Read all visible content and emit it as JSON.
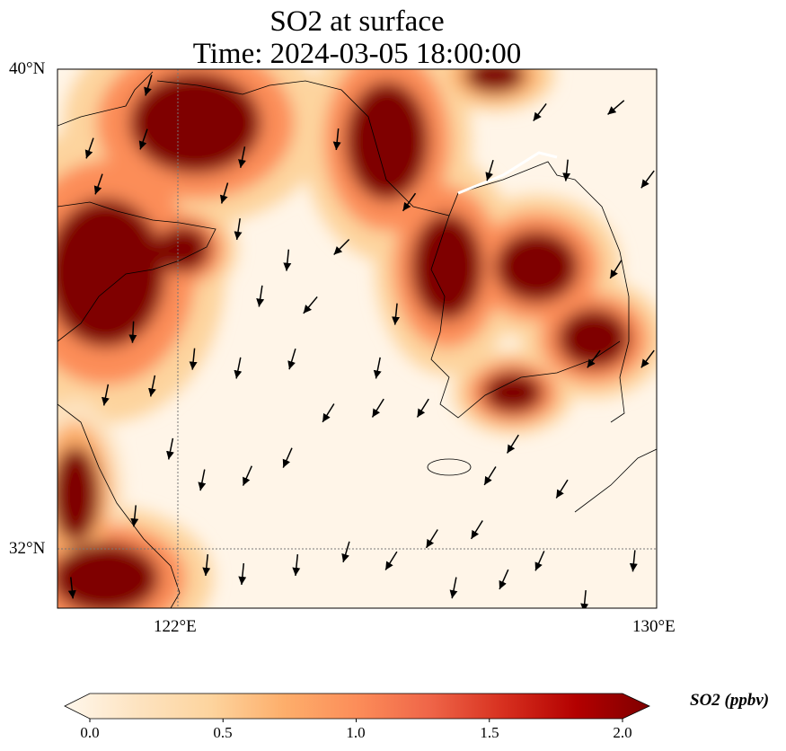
{
  "title": {
    "line1": "SO2 at surface",
    "line2": "Time: 2024-03-05 18:00:00"
  },
  "axes": {
    "lat_ticks": [
      {
        "value": 40,
        "label": "40°N"
      },
      {
        "value": 32,
        "label": "32°N"
      }
    ],
    "lon_ticks": [
      {
        "value": 122,
        "label": "122°E"
      },
      {
        "value": 130,
        "label": "130°E"
      }
    ]
  },
  "colorbar": {
    "label": "SO2 (ppbv)",
    "ticks": [
      {
        "value": 0.0,
        "label": "0.0"
      },
      {
        "value": 0.5,
        "label": "0.5"
      },
      {
        "value": 1.0,
        "label": "1.0"
      },
      {
        "value": 1.5,
        "label": "1.5"
      },
      {
        "value": 2.0,
        "label": "2.0"
      }
    ],
    "colors": [
      "#fff7ec",
      "#fde3c0",
      "#fdd49e",
      "#fdae6b",
      "#fc8d59",
      "#ef6548",
      "#d7301f",
      "#b30000",
      "#7f0000"
    ]
  },
  "chart_data": {
    "type": "heatmap",
    "title": "SO2 at surface / Time: 2024-03-05 18:00:00",
    "variable": "SO2",
    "units": "ppbv",
    "lon_range": [
      120,
      130
    ],
    "lat_range": [
      31,
      40
    ],
    "value_range": [
      0,
      2
    ],
    "gridlines": {
      "lon": [
        122
      ],
      "lat": [
        32
      ]
    },
    "hotspots": [
      {
        "lon": 122.3,
        "lat": 39.1,
        "rlon": 1.1,
        "rlat": 0.85,
        "value": 2.0
      },
      {
        "lon": 120.8,
        "lat": 36.6,
        "rlon": 1.0,
        "rlat": 1.25,
        "value": 2.0
      },
      {
        "lon": 122.1,
        "lat": 37.0,
        "rlon": 0.45,
        "rlat": 0.4,
        "value": 1.8
      },
      {
        "lon": 125.5,
        "lat": 38.8,
        "rlon": 0.7,
        "rlat": 1.0,
        "value": 2.0
      },
      {
        "lon": 127.3,
        "lat": 39.9,
        "rlon": 0.5,
        "rlat": 0.3,
        "value": 1.6
      },
      {
        "lon": 126.5,
        "lat": 36.7,
        "rlon": 0.6,
        "rlat": 0.9,
        "value": 2.0
      },
      {
        "lon": 128.0,
        "lat": 36.7,
        "rlon": 0.7,
        "rlat": 0.6,
        "value": 2.0
      },
      {
        "lon": 128.95,
        "lat": 35.5,
        "rlon": 0.6,
        "rlat": 0.5,
        "value": 2.0
      },
      {
        "lon": 127.6,
        "lat": 34.6,
        "rlon": 0.5,
        "rlat": 0.35,
        "value": 2.0
      },
      {
        "lon": 120.8,
        "lat": 31.5,
        "rlon": 0.9,
        "rlat": 0.6,
        "value": 2.0
      },
      {
        "lon": 120.3,
        "lat": 32.9,
        "rlon": 0.4,
        "rlat": 0.8,
        "value": 1.3
      }
    ],
    "wind_arrows": [
      [
        120.54,
        38.68,
        -0.35,
        -1
      ],
      [
        120.69,
        38.08,
        -0.35,
        -1
      ],
      [
        121.52,
        39.73,
        -0.3,
        -1
      ],
      [
        121.44,
        38.83,
        -0.35,
        -1
      ],
      [
        123.09,
        38.53,
        -0.2,
        -1
      ],
      [
        122.79,
        37.93,
        -0.3,
        -1
      ],
      [
        123.02,
        37.33,
        -0.15,
        -1
      ],
      [
        124.67,
        38.83,
        -0.1,
        -1
      ],
      [
        124.74,
        37.03,
        -0.6,
        -0.6
      ],
      [
        123.84,
        36.81,
        -0.1,
        -1
      ],
      [
        123.39,
        36.21,
        -0.15,
        -1
      ],
      [
        124.22,
        36.06,
        -0.5,
        -0.6
      ],
      [
        125.87,
        37.78,
        -0.5,
        -0.7
      ],
      [
        125.65,
        35.91,
        -0.1,
        -1
      ],
      [
        121.26,
        35.61,
        -0.05,
        -1
      ],
      [
        122.27,
        35.16,
        -0.1,
        -1
      ],
      [
        123.02,
        35.01,
        -0.2,
        -1
      ],
      [
        123.92,
        35.16,
        -0.3,
        -1
      ],
      [
        125.35,
        35.01,
        -0.2,
        -1
      ],
      [
        127.22,
        38.31,
        -0.3,
        -1
      ],
      [
        128.05,
        39.28,
        -0.6,
        -0.8
      ],
      [
        129.32,
        39.36,
        -0.7,
        -0.6
      ],
      [
        128.5,
        38.31,
        -0.1,
        -1
      ],
      [
        129.85,
        38.16,
        -0.6,
        -0.8
      ],
      [
        129.32,
        36.66,
        -0.5,
        -0.8
      ],
      [
        120.81,
        34.56,
        -0.2,
        -1
      ],
      [
        121.59,
        34.71,
        -0.2,
        -1
      ],
      [
        121.89,
        33.66,
        -0.2,
        -1
      ],
      [
        122.42,
        33.14,
        -0.2,
        -1
      ],
      [
        123.17,
        33.21,
        -0.4,
        -0.9
      ],
      [
        123.84,
        33.51,
        -0.4,
        -0.9
      ],
      [
        124.52,
        34.26,
        -0.5,
        -0.8
      ],
      [
        125.35,
        34.34,
        -0.5,
        -0.8
      ],
      [
        126.1,
        34.34,
        -0.5,
        -0.8
      ],
      [
        127.22,
        33.21,
        -0.5,
        -0.8
      ],
      [
        127.6,
        33.74,
        -0.5,
        -0.8
      ],
      [
        128.42,
        32.99,
        -0.5,
        -0.8
      ],
      [
        121.29,
        32.54,
        -0.1,
        -1
      ],
      [
        122.49,
        31.72,
        -0.1,
        -1
      ],
      [
        123.09,
        31.57,
        -0.1,
        -1
      ],
      [
        123.99,
        31.72,
        -0.1,
        -1
      ],
      [
        124.82,
        31.94,
        -0.3,
        -1
      ],
      [
        125.57,
        31.79,
        -0.5,
        -0.8
      ],
      [
        126.25,
        32.16,
        -0.5,
        -0.8
      ],
      [
        127.0,
        32.31,
        -0.5,
        -0.8
      ],
      [
        127.45,
        31.48,
        -0.4,
        -0.9
      ],
      [
        128.05,
        31.79,
        -0.4,
        -0.9
      ],
      [
        126.62,
        31.34,
        -0.2,
        -1
      ],
      [
        129.62,
        31.79,
        -0.1,
        -1
      ],
      [
        129.85,
        35.16,
        -0.6,
        -0.8
      ],
      [
        128.95,
        35.16,
        -0.6,
        -0.8
      ],
      [
        120.24,
        31.34,
        0.1,
        -1
      ],
      [
        128.8,
        31.12,
        -0.1,
        -1
      ]
    ]
  }
}
